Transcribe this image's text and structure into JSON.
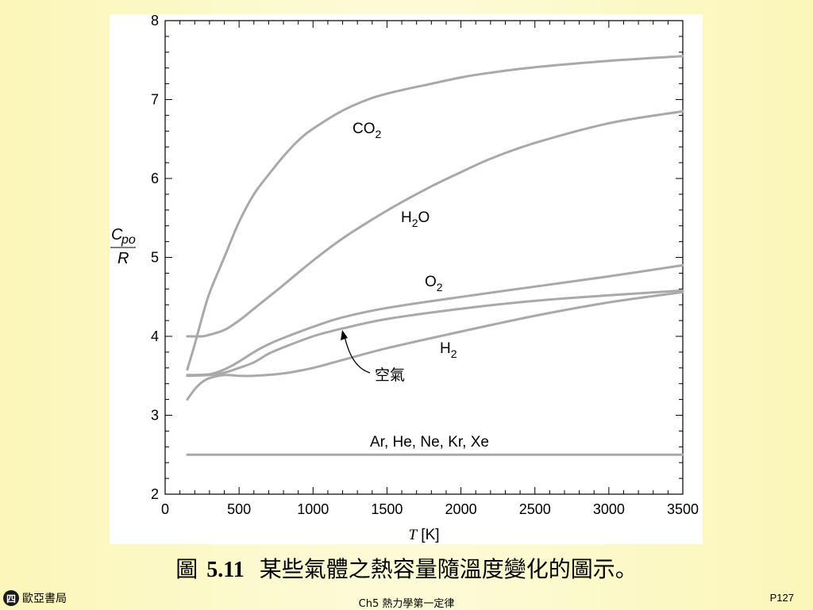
{
  "chart_data": {
    "type": "line",
    "xlabel_symbol": "T",
    "xlabel_unit": "[K]",
    "ylabel_numerator": "C",
    "ylabel_numerator_sub": "po",
    "ylabel_denominator": "R",
    "xlim": [
      0,
      3500
    ],
    "ylim": [
      2,
      8
    ],
    "xticks": [
      0,
      500,
      1000,
      1500,
      2000,
      2500,
      3000,
      3500
    ],
    "yticks": [
      2,
      3,
      4,
      5,
      6,
      7,
      8
    ],
    "series": [
      {
        "name": "CO2",
        "label_main": "CO",
        "label_sub": "2",
        "color": "#a9a9a9",
        "x": [
          150,
          200,
          250,
          300,
          400,
          500,
          600,
          700,
          800,
          900,
          1000,
          1200,
          1400,
          1600,
          1800,
          2000,
          2200,
          2500,
          3000,
          3500
        ],
        "y": [
          3.58,
          3.9,
          4.24,
          4.55,
          5.0,
          5.45,
          5.8,
          6.05,
          6.28,
          6.48,
          6.63,
          6.86,
          7.02,
          7.12,
          7.2,
          7.28,
          7.34,
          7.41,
          7.49,
          7.55
        ]
      },
      {
        "name": "H2O",
        "label_main": "H",
        "label_sub": "2",
        "label_tail": "O",
        "color": "#a9a9a9",
        "x": [
          150,
          250,
          300,
          400,
          500,
          600,
          700,
          800,
          1000,
          1200,
          1400,
          1600,
          1800,
          2000,
          2200,
          2500,
          3000,
          3500
        ],
        "y": [
          4.0,
          4.0,
          4.02,
          4.08,
          4.2,
          4.35,
          4.5,
          4.65,
          4.96,
          5.24,
          5.48,
          5.7,
          5.9,
          6.08,
          6.25,
          6.45,
          6.7,
          6.85
        ]
      },
      {
        "name": "O2",
        "label_main": "O",
        "label_sub": "2",
        "color": "#a9a9a9",
        "x": [
          150,
          300,
          400,
          500,
          600,
          700,
          800,
          1000,
          1200,
          1500,
          2000,
          2500,
          3000,
          3500
        ],
        "y": [
          3.51,
          3.52,
          3.58,
          3.68,
          3.8,
          3.9,
          3.98,
          4.12,
          4.24,
          4.36,
          4.5,
          4.63,
          4.76,
          4.9
        ]
      },
      {
        "name": "空氣",
        "label_main": "空氣",
        "color": "#a9a9a9",
        "x": [
          150,
          300,
          400,
          500,
          600,
          700,
          800,
          1000,
          1200,
          1500,
          2000,
          2500,
          3000,
          3500
        ],
        "y": [
          3.5,
          3.51,
          3.54,
          3.6,
          3.67,
          3.78,
          3.86,
          4.0,
          4.1,
          4.22,
          4.35,
          4.45,
          4.52,
          4.58
        ]
      },
      {
        "name": "H2",
        "label_main": "H",
        "label_sub": "2",
        "color": "#a9a9a9",
        "x": [
          150,
          200,
          250,
          300,
          400,
          500,
          600,
          800,
          1000,
          1200,
          1500,
          2000,
          2500,
          3000,
          3500
        ],
        "y": [
          3.2,
          3.33,
          3.42,
          3.47,
          3.51,
          3.5,
          3.5,
          3.53,
          3.6,
          3.7,
          3.85,
          4.06,
          4.26,
          4.43,
          4.56
        ]
      },
      {
        "name": "Ar, He, Ne, Kr, Xe",
        "label_main": "Ar, He, Ne, Kr, Xe",
        "color": "#a9a9a9",
        "x": [
          150,
          3500
        ],
        "y": [
          2.5,
          2.5
        ]
      }
    ]
  },
  "caption": {
    "label": "圖",
    "number": "5.11",
    "text": "某些氣體之熱容量隨溫度變化的圖示。"
  },
  "footer": {
    "logo_glyph": "四",
    "publisher": "歐亞書局",
    "chapter": "Ch5 熱力學第一定律",
    "page": "P127"
  }
}
